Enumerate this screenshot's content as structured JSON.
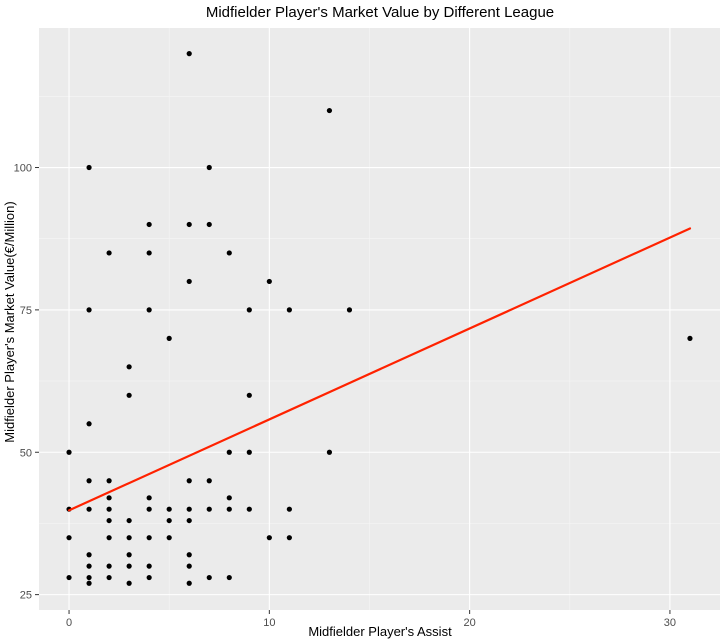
{
  "chart_data": {
    "type": "scatter",
    "title": "Midfielder Player's Market Value by Different League",
    "xlabel": "Midfielder Player's Assist",
    "ylabel": "Midfielder Player's Market Value(€/Million)",
    "xlim": [
      -1.5,
      32.5
    ],
    "ylim": [
      22.3,
      124.5
    ],
    "xticks": [
      0,
      10,
      20,
      30
    ],
    "xtick_labels": [
      "0",
      "10",
      "20",
      "30"
    ],
    "yticks": [
      25,
      50,
      75,
      100
    ],
    "ytick_labels": [
      "25",
      "50",
      "75",
      "100"
    ],
    "grid": true,
    "background": "#ebebeb",
    "point_color": "#000000",
    "fit_line_color": "#ff2200",
    "fit_line": {
      "x": [
        0,
        31
      ],
      "y": [
        39.8,
        89.3
      ]
    },
    "points": [
      {
        "x": 0,
        "y": 50
      },
      {
        "x": 0,
        "y": 40
      },
      {
        "x": 0,
        "y": 35
      },
      {
        "x": 0,
        "y": 28
      },
      {
        "x": 1,
        "y": 100
      },
      {
        "x": 1,
        "y": 75
      },
      {
        "x": 1,
        "y": 55
      },
      {
        "x": 1,
        "y": 45
      },
      {
        "x": 1,
        "y": 40
      },
      {
        "x": 1,
        "y": 32
      },
      {
        "x": 1,
        "y": 30
      },
      {
        "x": 1,
        "y": 28
      },
      {
        "x": 1,
        "y": 27
      },
      {
        "x": 2,
        "y": 85
      },
      {
        "x": 2,
        "y": 45
      },
      {
        "x": 2,
        "y": 42
      },
      {
        "x": 2,
        "y": 40
      },
      {
        "x": 2,
        "y": 38
      },
      {
        "x": 2,
        "y": 35
      },
      {
        "x": 2,
        "y": 30
      },
      {
        "x": 2,
        "y": 28
      },
      {
        "x": 3,
        "y": 65
      },
      {
        "x": 3,
        "y": 60
      },
      {
        "x": 3,
        "y": 38
      },
      {
        "x": 3,
        "y": 35
      },
      {
        "x": 3,
        "y": 32
      },
      {
        "x": 3,
        "y": 30
      },
      {
        "x": 3,
        "y": 27
      },
      {
        "x": 4,
        "y": 90
      },
      {
        "x": 4,
        "y": 85
      },
      {
        "x": 4,
        "y": 75
      },
      {
        "x": 4,
        "y": 42
      },
      {
        "x": 4,
        "y": 40
      },
      {
        "x": 4,
        "y": 35
      },
      {
        "x": 4,
        "y": 30
      },
      {
        "x": 4,
        "y": 28
      },
      {
        "x": 5,
        "y": 70
      },
      {
        "x": 5,
        "y": 40
      },
      {
        "x": 5,
        "y": 38
      },
      {
        "x": 5,
        "y": 35
      },
      {
        "x": 6,
        "y": 120
      },
      {
        "x": 6,
        "y": 90
      },
      {
        "x": 6,
        "y": 80
      },
      {
        "x": 6,
        "y": 45
      },
      {
        "x": 6,
        "y": 40
      },
      {
        "x": 6,
        "y": 38
      },
      {
        "x": 6,
        "y": 32
      },
      {
        "x": 6,
        "y": 30
      },
      {
        "x": 6,
        "y": 27
      },
      {
        "x": 7,
        "y": 100
      },
      {
        "x": 7,
        "y": 90
      },
      {
        "x": 7,
        "y": 45
      },
      {
        "x": 7,
        "y": 40
      },
      {
        "x": 7,
        "y": 28
      },
      {
        "x": 8,
        "y": 85
      },
      {
        "x": 8,
        "y": 50
      },
      {
        "x": 8,
        "y": 42
      },
      {
        "x": 8,
        "y": 40
      },
      {
        "x": 8,
        "y": 28
      },
      {
        "x": 9,
        "y": 75
      },
      {
        "x": 9,
        "y": 60
      },
      {
        "x": 9,
        "y": 50
      },
      {
        "x": 9,
        "y": 40
      },
      {
        "x": 10,
        "y": 80
      },
      {
        "x": 10,
        "y": 35
      },
      {
        "x": 11,
        "y": 75
      },
      {
        "x": 11,
        "y": 40
      },
      {
        "x": 11,
        "y": 35
      },
      {
        "x": 13,
        "y": 110
      },
      {
        "x": 13,
        "y": 50
      },
      {
        "x": 14,
        "y": 75
      },
      {
        "x": 31,
        "y": 70
      }
    ]
  }
}
